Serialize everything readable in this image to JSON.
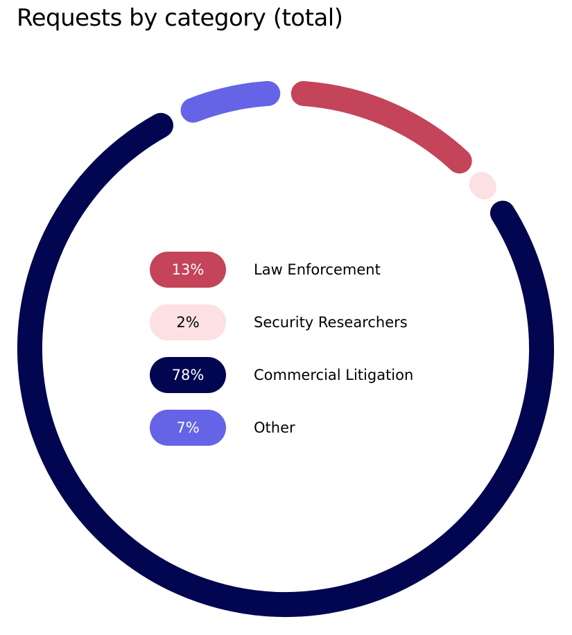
{
  "chart_data": {
    "type": "pie",
    "title": "Requests by category (total)",
    "slices": [
      {
        "label": "Law Enforcement",
        "value": 13,
        "value_label": "13%",
        "color": "#c4445a",
        "text_color": "#ffffff"
      },
      {
        "label": "Security Researchers",
        "value": 2,
        "value_label": "2%",
        "color": "#fde0e1",
        "text_color": "#000000"
      },
      {
        "label": "Commercial Litigation",
        "value": 78,
        "value_label": "78%",
        "color": "#020550",
        "text_color": "#ffffff"
      },
      {
        "label": "Other",
        "value": 7,
        "value_label": "7%",
        "color": "#6564e6",
        "text_color": "#ffffff"
      }
    ],
    "legend_position": "center"
  }
}
